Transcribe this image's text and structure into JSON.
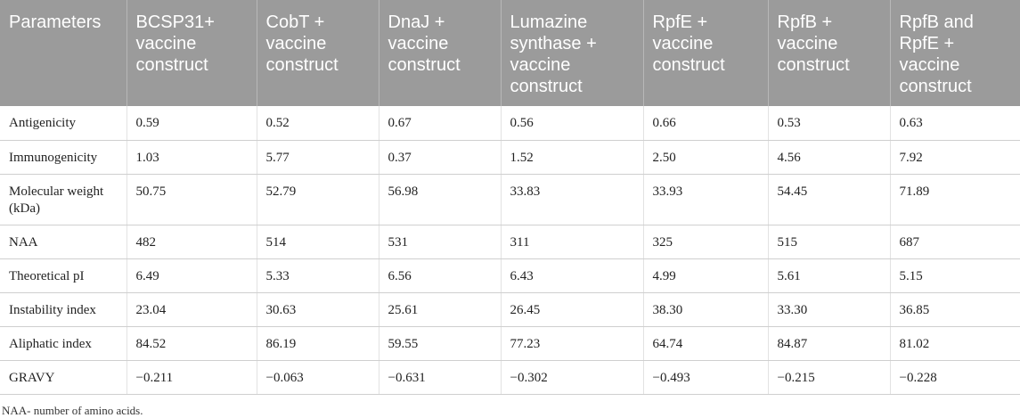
{
  "table": {
    "headers": [
      "Parameters",
      "BCSP31+ vaccine construct",
      "CobT + vaccine construct",
      "DnaJ + vaccine construct",
      "Lumazine synthase + vaccine construct",
      "RpfE + vaccine construct",
      "RpfB + vaccine construct",
      "RpfB and RpfE + vaccine construct"
    ],
    "rows": [
      [
        "Antigenicity",
        "0.59",
        "0.52",
        "0.67",
        "0.56",
        "0.66",
        "0.53",
        "0.63"
      ],
      [
        "Immunogenicity",
        "1.03",
        "5.77",
        "0.37",
        "1.52",
        "2.50",
        "4.56",
        "7.92"
      ],
      [
        "Molecular weight (kDa)",
        "50.75",
        "52.79",
        "56.98",
        "33.83",
        "33.93",
        "54.45",
        "71.89"
      ],
      [
        "NAA",
        "482",
        "514",
        "531",
        "311",
        "325",
        "515",
        "687"
      ],
      [
        "Theoretical pI",
        "6.49",
        "5.33",
        "6.56",
        "6.43",
        "4.99",
        "5.61",
        "5.15"
      ],
      [
        "Instability index",
        "23.04",
        "30.63",
        "25.61",
        "26.45",
        "38.30",
        "33.30",
        "36.85"
      ],
      [
        "Aliphatic index",
        "84.52",
        "86.19",
        "59.55",
        "77.23",
        "64.74",
        "84.87",
        "81.02"
      ],
      [
        "GRAVY",
        "−0.211",
        "−0.063",
        "−0.631",
        "−0.302",
        "−0.493",
        "−0.215",
        "−0.228"
      ]
    ]
  },
  "footnote": "NAA- number of amino acids."
}
